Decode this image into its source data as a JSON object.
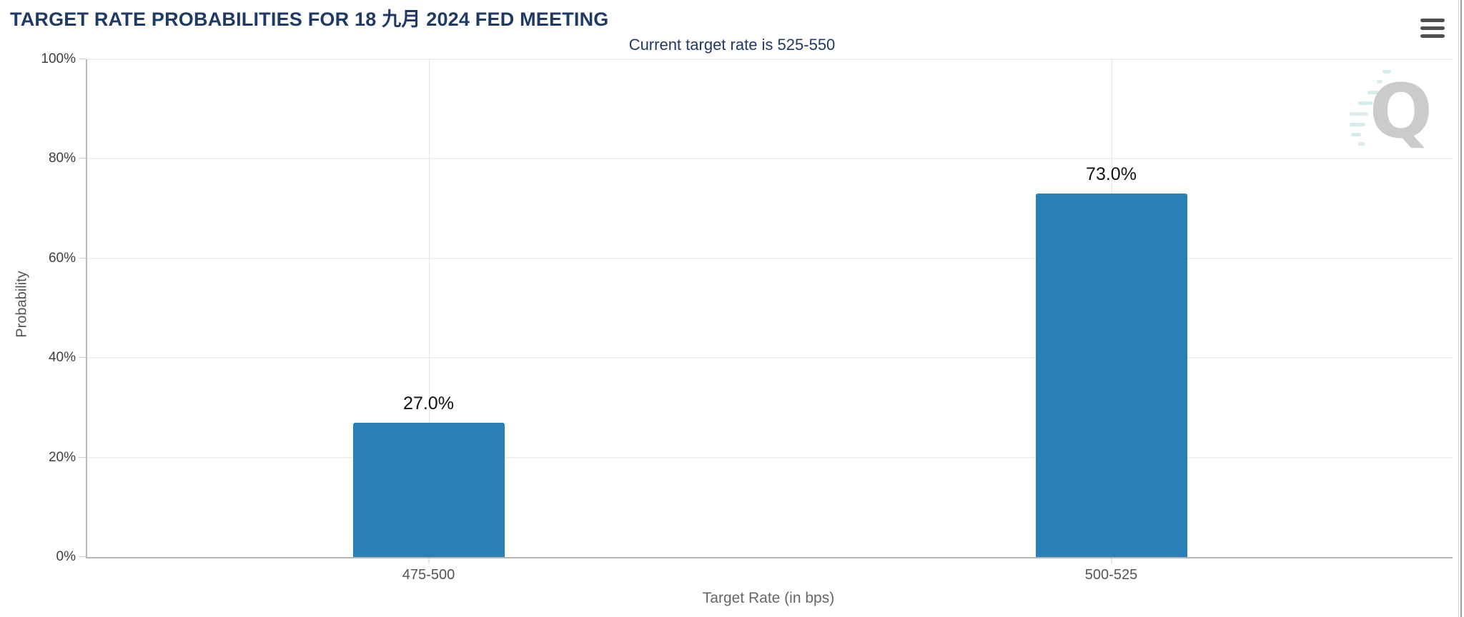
{
  "chart_data": {
    "type": "bar",
    "title": "TARGET RATE PROBABILITIES FOR 18 九月 2024 FED MEETING",
    "subtitle": "Current target rate is 525-550",
    "categories": [
      "475-500",
      "500-525"
    ],
    "values": [
      27.0,
      73.0
    ],
    "value_labels": [
      "27.0%",
      "73.0%"
    ],
    "xlabel": "Target Rate (in bps)",
    "ylabel": "Probability",
    "ylim": [
      0,
      100
    ],
    "ytick_values": [
      0,
      20,
      40,
      60,
      80,
      100
    ],
    "ytick_labels": [
      "0%",
      "20%",
      "40%",
      "60%",
      "80%",
      "100%"
    ],
    "grid": true,
    "legend": "none",
    "bar_color": "#2980b8"
  },
  "header": {
    "menu_icon": "hamburger-icon"
  },
  "watermark": {
    "letter": "Q"
  },
  "colors": {
    "title_navy": "#203a68",
    "bar_blue": "#2980b8",
    "gridline": "#e3e3e3",
    "axis_line": "#b8b8b8"
  }
}
